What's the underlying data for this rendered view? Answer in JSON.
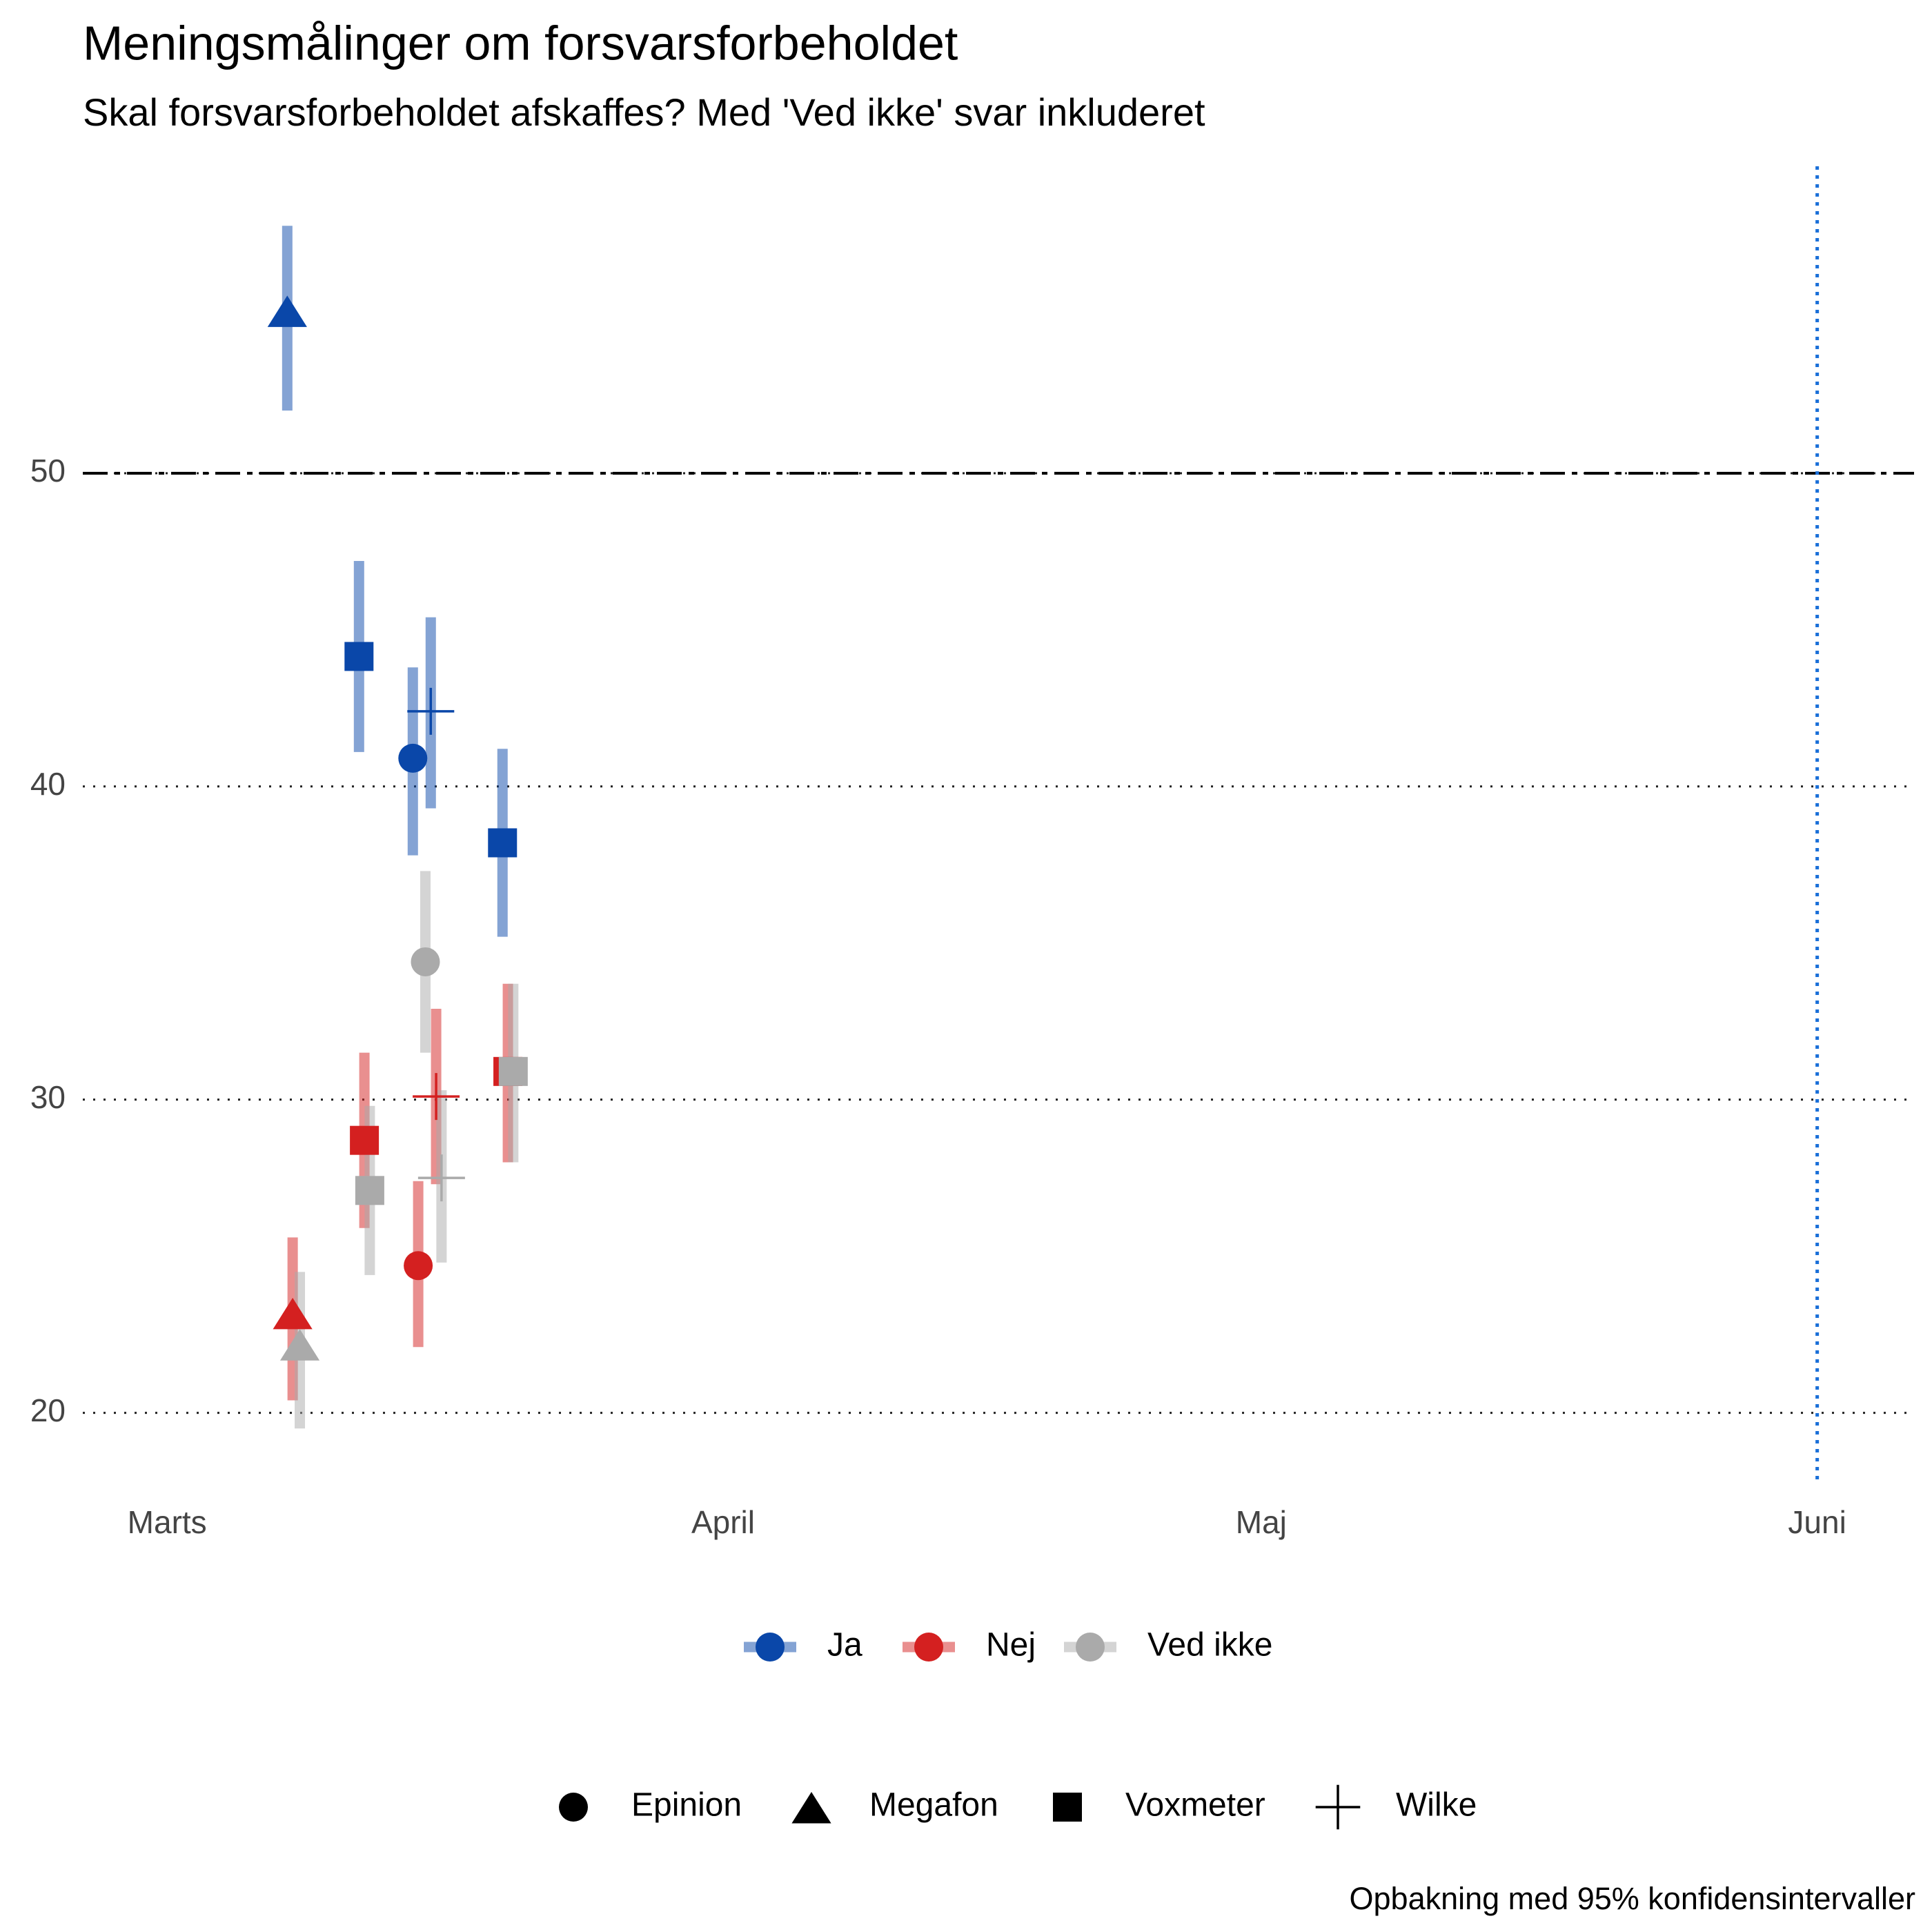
{
  "chart_data": {
    "type": "scatter",
    "title": "Meningsmålinger om forsvarsforbeholdet",
    "subtitle": "Skal forsvarsforbeholdet afskaffes? Med 'Ved ikke' svar inkluderet",
    "caption": "Opbakning med 95% konfidensintervaller",
    "xlim": [
      -4.7,
      97.4
    ],
    "xticks": [
      {
        "value": 0,
        "label": "Marts"
      },
      {
        "value": 31,
        "label": "April"
      },
      {
        "value": 61,
        "label": "Maj"
      },
      {
        "value": 92,
        "label": "Juni"
      }
    ],
    "ylim": [
      17.7,
      59.8
    ],
    "yticks": [
      20,
      30,
      40,
      50
    ],
    "grid": true,
    "reference_y": 50,
    "reference_x": 92,
    "pollsters": [
      {
        "name": "Epinion",
        "shape": "circle"
      },
      {
        "name": "Megafon",
        "shape": "triangle"
      },
      {
        "name": "Voxmeter",
        "shape": "square"
      },
      {
        "name": "Wilke",
        "shape": "plus"
      }
    ],
    "series": [
      {
        "name": "Ja",
        "color": "#0a47a9",
        "pollster": [
          "Megafon",
          "Voxmeter",
          "Epinion",
          "Wilke",
          "Voxmeter"
        ],
        "x": [
          6.7,
          10.7,
          13.7,
          14.7,
          18.7
        ],
        "values": [
          55.1,
          44.15,
          40.9,
          42.4,
          38.2
        ],
        "lower": [
          52.0,
          41.1,
          37.8,
          39.3,
          35.2
        ],
        "upper": [
          57.9,
          47.2,
          43.8,
          45.4,
          41.2
        ]
      },
      {
        "name": "Nej",
        "color": "#d42020",
        "pollster": [
          "Megafon",
          "Voxmeter",
          "Epinion",
          "Wilke",
          "Voxmeter"
        ],
        "x": [
          7.0,
          11.0,
          14.0,
          15.0,
          19.0
        ],
        "values": [
          23.1,
          28.7,
          24.7,
          30.1,
          30.9
        ],
        "lower": [
          20.4,
          25.9,
          22.1,
          27.3,
          28.0
        ],
        "upper": [
          25.6,
          31.5,
          27.4,
          32.9,
          33.7
        ]
      },
      {
        "name": "Ved ikke",
        "color": "#aaaaaa",
        "pollster": [
          "Megafon",
          "Voxmeter",
          "Epinion",
          "Wilke",
          "Voxmeter"
        ],
        "x": [
          7.4,
          11.3,
          14.4,
          15.3,
          19.3
        ],
        "values": [
          22.1,
          27.1,
          34.4,
          27.5,
          30.9
        ],
        "lower": [
          19.5,
          24.4,
          31.5,
          24.8,
          28.0
        ],
        "upper": [
          24.5,
          29.8,
          37.3,
          30.3,
          33.7
        ]
      }
    ]
  }
}
